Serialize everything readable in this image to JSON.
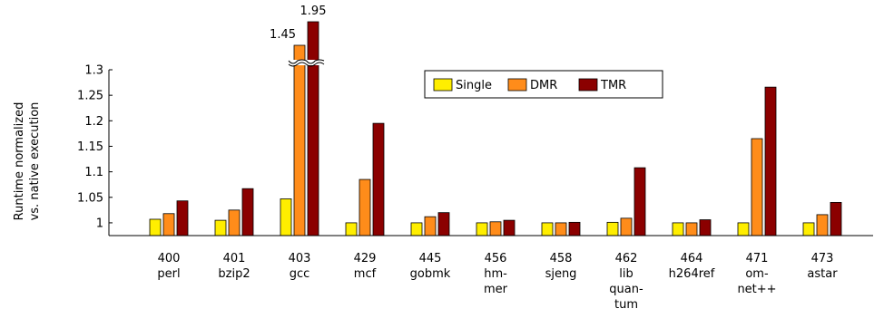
{
  "chart_data": {
    "type": "bar",
    "categories": [
      [
        "400",
        "perl"
      ],
      [
        "401",
        "bzip2"
      ],
      [
        "403",
        "gcc"
      ],
      [
        "429",
        "mcf"
      ],
      [
        "445",
        "gobmk"
      ],
      [
        "456",
        "hm-",
        "mer"
      ],
      [
        "458",
        "sjeng"
      ],
      [
        "462",
        "lib",
        "quan-",
        "tum"
      ],
      [
        "464",
        "h264ref"
      ],
      [
        "471",
        "om-",
        "net++"
      ],
      [
        "473",
        "astar"
      ]
    ],
    "series": [
      {
        "name": "Single",
        "color": "#ffee00",
        "values": [
          1.007,
          1.005,
          1.047,
          1.0,
          1.0,
          1.0,
          1.0,
          1.001,
          1.0,
          1.0,
          1.0
        ]
      },
      {
        "name": "DMR",
        "color": "#ff8c1a",
        "values": [
          1.018,
          1.025,
          1.45,
          1.085,
          1.012,
          1.002,
          1.0,
          1.009,
          1.0,
          1.165,
          1.016
        ]
      },
      {
        "name": "TMR",
        "color": "#8b0000",
        "values": [
          1.043,
          1.067,
          1.95,
          1.195,
          1.02,
          1.005,
          1.001,
          1.108,
          1.006,
          1.266,
          1.04
        ]
      }
    ],
    "ylabel": [
      "Runtime normalized",
      "vs. native execution"
    ],
    "yticks": [
      1,
      1.05,
      1.1,
      1.15,
      1.2,
      1.25,
      1.3
    ],
    "ytick_labels": [
      "1",
      "1.05",
      "1.1",
      "1.15",
      "1.2",
      "1.25",
      "1.3"
    ],
    "ylim": [
      0.975,
      1.3
    ],
    "axis_break": true,
    "annotations": [
      {
        "category_index": 2,
        "series": "DMR",
        "text": "1.45"
      },
      {
        "category_index": 2,
        "series": "TMR",
        "text": "1.95"
      }
    ],
    "legend_position": "top-center",
    "grid": false
  }
}
